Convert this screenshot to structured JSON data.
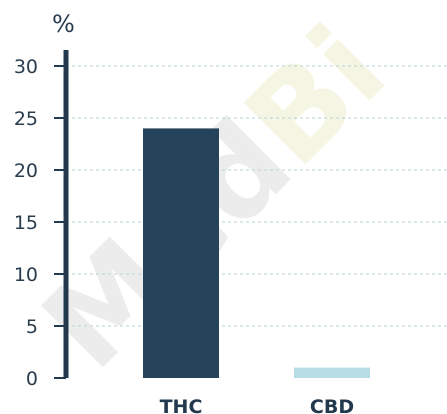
{
  "chart_data": {
    "type": "bar",
    "ylabel": "%",
    "categories": [
      "THC",
      "CBD"
    ],
    "values": [
      24,
      1
    ],
    "ylim": [
      0,
      30
    ],
    "yticks": [
      0,
      5,
      10,
      15,
      20,
      25,
      30
    ],
    "grid": true,
    "colors": [
      "#25435a",
      "#b8dce6"
    ],
    "axis_color": "#22384c",
    "grid_color": "#b9d3d6"
  },
  "watermark": {
    "text": "MedBi",
    "colors": [
      "#ececec",
      "#f5f5e4"
    ]
  }
}
